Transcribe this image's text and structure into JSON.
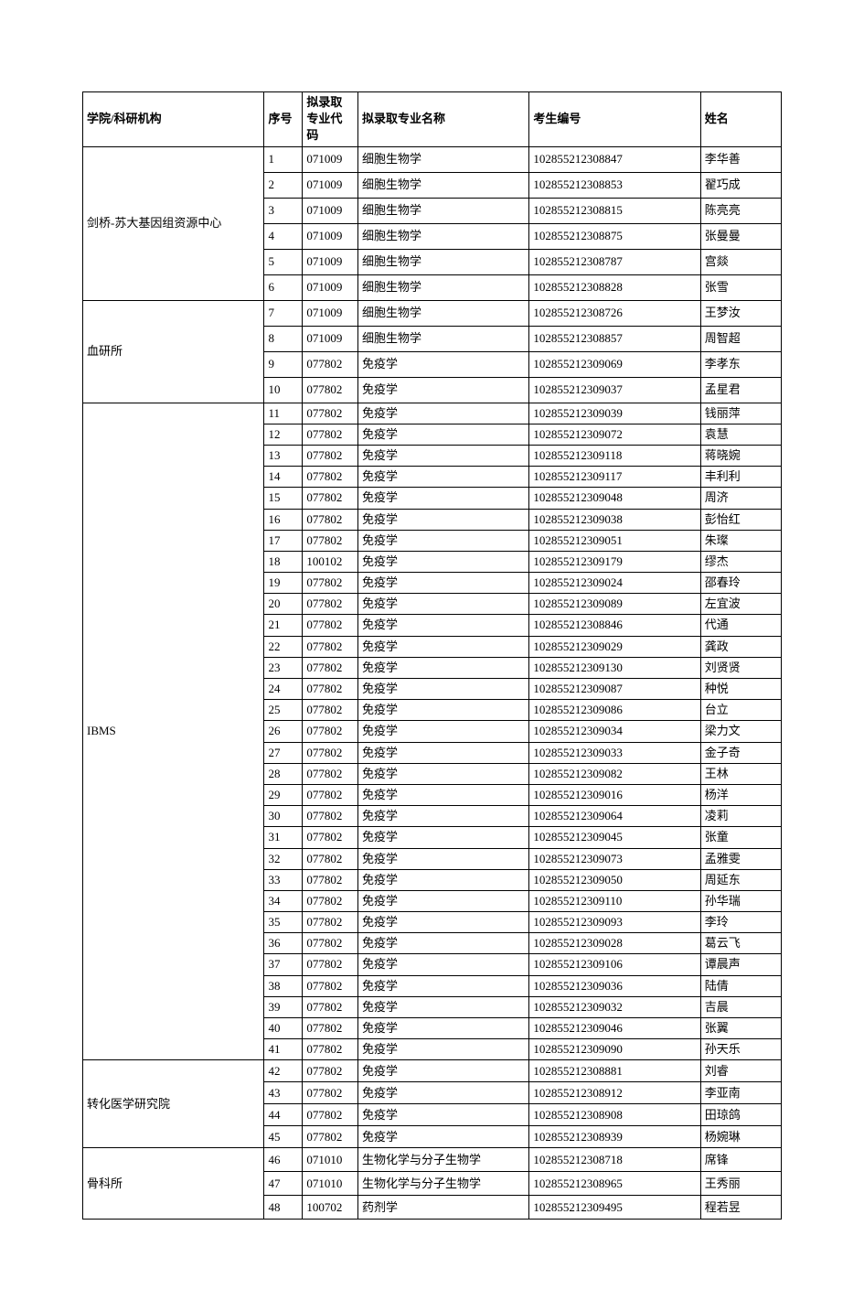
{
  "headers": {
    "institution": "学院/科研机构",
    "seq": "序号",
    "major_code": "拟录取专业代码",
    "major_name": "拟录取专业名称",
    "exam_id": "考生编号",
    "name": "姓名"
  },
  "groups": [
    {
      "institution": "剑桥-苏大基因组资源中心",
      "class": "group-1",
      "rows": [
        {
          "seq": "1",
          "code": "071009",
          "major": "细胞生物学",
          "exam": "102855212308847",
          "name": "李华善"
        },
        {
          "seq": "2",
          "code": "071009",
          "major": "细胞生物学",
          "exam": "102855212308853",
          "name": "翟巧成"
        },
        {
          "seq": "3",
          "code": "071009",
          "major": "细胞生物学",
          "exam": "102855212308815",
          "name": "陈亮亮"
        },
        {
          "seq": "4",
          "code": "071009",
          "major": "细胞生物学",
          "exam": "102855212308875",
          "name": "张曼曼"
        },
        {
          "seq": "5",
          "code": "071009",
          "major": "细胞生物学",
          "exam": "102855212308787",
          "name": "宫燚"
        },
        {
          "seq": "6",
          "code": "071009",
          "major": "细胞生物学",
          "exam": "102855212308828",
          "name": "张雪"
        }
      ]
    },
    {
      "institution": "血研所",
      "class": "group-2",
      "rows": [
        {
          "seq": "7",
          "code": "071009",
          "major": "细胞生物学",
          "exam": "102855212308726",
          "name": "王梦汝"
        },
        {
          "seq": "8",
          "code": "071009",
          "major": "细胞生物学",
          "exam": "102855212308857",
          "name": "周智超"
        },
        {
          "seq": "9",
          "code": "077802",
          "major": "免疫学",
          "exam": "102855212309069",
          "name": "李孝东"
        },
        {
          "seq": "10",
          "code": "077802",
          "major": "免疫学",
          "exam": "102855212309037",
          "name": "孟星君"
        }
      ]
    },
    {
      "institution": "IBMS",
      "class": "group-3",
      "rows": [
        {
          "seq": "11",
          "code": "077802",
          "major": "免疫学",
          "exam": "102855212309039",
          "name": "钱丽萍"
        },
        {
          "seq": "12",
          "code": "077802",
          "major": "免疫学",
          "exam": "102855212309072",
          "name": "袁慧"
        },
        {
          "seq": "13",
          "code": "077802",
          "major": "免疫学",
          "exam": "102855212309118",
          "name": "蒋晓婉"
        },
        {
          "seq": "14",
          "code": "077802",
          "major": "免疫学",
          "exam": "102855212309117",
          "name": "丰利利"
        },
        {
          "seq": "15",
          "code": "077802",
          "major": "免疫学",
          "exam": "102855212309048",
          "name": "周济"
        },
        {
          "seq": "16",
          "code": "077802",
          "major": "免疫学",
          "exam": "102855212309038",
          "name": "彭怡红"
        },
        {
          "seq": "17",
          "code": "077802",
          "major": "免疫学",
          "exam": "102855212309051",
          "name": "朱璨"
        },
        {
          "seq": "18",
          "code": "100102",
          "major": "免疫学",
          "exam": "102855212309179",
          "name": "缪杰"
        },
        {
          "seq": "19",
          "code": "077802",
          "major": "免疫学",
          "exam": "102855212309024",
          "name": "邵春玲"
        },
        {
          "seq": "20",
          "code": "077802",
          "major": "免疫学",
          "exam": "102855212309089",
          "name": "左宜波"
        },
        {
          "seq": "21",
          "code": "077802",
          "major": "免疫学",
          "exam": "102855212308846",
          "name": "代通"
        },
        {
          "seq": "22",
          "code": "077802",
          "major": "免疫学",
          "exam": "102855212309029",
          "name": "龚政"
        },
        {
          "seq": "23",
          "code": "077802",
          "major": "免疫学",
          "exam": "102855212309130",
          "name": "刘贤贤"
        },
        {
          "seq": "24",
          "code": "077802",
          "major": "免疫学",
          "exam": "102855212309087",
          "name": "种悦"
        },
        {
          "seq": "25",
          "code": "077802",
          "major": "免疫学",
          "exam": "102855212309086",
          "name": "台立"
        },
        {
          "seq": "26",
          "code": "077802",
          "major": "免疫学",
          "exam": "102855212309034",
          "name": "梁力文"
        },
        {
          "seq": "27",
          "code": "077802",
          "major": "免疫学",
          "exam": "102855212309033",
          "name": "金子奇"
        },
        {
          "seq": "28",
          "code": "077802",
          "major": "免疫学",
          "exam": "102855212309082",
          "name": "王林"
        },
        {
          "seq": "29",
          "code": "077802",
          "major": "免疫学",
          "exam": "102855212309016",
          "name": "杨洋"
        },
        {
          "seq": "30",
          "code": "077802",
          "major": "免疫学",
          "exam": "102855212309064",
          "name": "凌莉"
        },
        {
          "seq": "31",
          "code": "077802",
          "major": "免疫学",
          "exam": "102855212309045",
          "name": "张童"
        },
        {
          "seq": "32",
          "code": "077802",
          "major": "免疫学",
          "exam": "102855212309073",
          "name": "孟雅雯"
        },
        {
          "seq": "33",
          "code": "077802",
          "major": "免疫学",
          "exam": "102855212309050",
          "name": "周延东"
        },
        {
          "seq": "34",
          "code": "077802",
          "major": "免疫学",
          "exam": "102855212309110",
          "name": "孙华瑞"
        },
        {
          "seq": "35",
          "code": "077802",
          "major": "免疫学",
          "exam": "102855212309093",
          "name": "李玲"
        },
        {
          "seq": "36",
          "code": "077802",
          "major": "免疫学",
          "exam": "102855212309028",
          "name": "葛云飞"
        },
        {
          "seq": "37",
          "code": "077802",
          "major": "免疫学",
          "exam": "102855212309106",
          "name": "谭晨声"
        },
        {
          "seq": "38",
          "code": "077802",
          "major": "免疫学",
          "exam": "102855212309036",
          "name": "陆倩"
        },
        {
          "seq": "39",
          "code": "077802",
          "major": "免疫学",
          "exam": "102855212309032",
          "name": "吉晨"
        },
        {
          "seq": "40",
          "code": "077802",
          "major": "免疫学",
          "exam": "102855212309046",
          "name": "张翼"
        },
        {
          "seq": "41",
          "code": "077802",
          "major": "免疫学",
          "exam": "102855212309090",
          "name": "孙天乐"
        }
      ]
    },
    {
      "institution": "转化医学研究院",
      "class": "group-4",
      "rows": [
        {
          "seq": "42",
          "code": "077802",
          "major": "免疫学",
          "exam": "102855212308881",
          "name": "刘睿"
        },
        {
          "seq": "43",
          "code": "077802",
          "major": "免疫学",
          "exam": "102855212308912",
          "name": "李亚南"
        },
        {
          "seq": "44",
          "code": "077802",
          "major": "免疫学",
          "exam": "102855212308908",
          "name": "田琼鸽"
        },
        {
          "seq": "45",
          "code": "077802",
          "major": "免疫学",
          "exam": "102855212308939",
          "name": "杨婉琳"
        }
      ]
    },
    {
      "institution": "骨科所",
      "class": "group-5",
      "rows": [
        {
          "seq": "46",
          "code": "071010",
          "major": "生物化学与分子生物学",
          "exam": "102855212308718",
          "name": "席锋"
        },
        {
          "seq": "47",
          "code": "071010",
          "major": "生物化学与分子生物学",
          "exam": "102855212308965",
          "name": "王秀丽"
        },
        {
          "seq": "48",
          "code": "100702",
          "major": "药剂学",
          "exam": "102855212309495",
          "name": "程若昱"
        }
      ]
    }
  ],
  "styling": {
    "border_color": "#000000",
    "background_color": "#ffffff",
    "font_family": "SimSun",
    "header_fontsize": 13,
    "cell_fontsize": 13,
    "col_widths": {
      "institution": 180,
      "seq": 38,
      "code": 55,
      "major": 170,
      "exam": 170,
      "name": 80
    }
  }
}
